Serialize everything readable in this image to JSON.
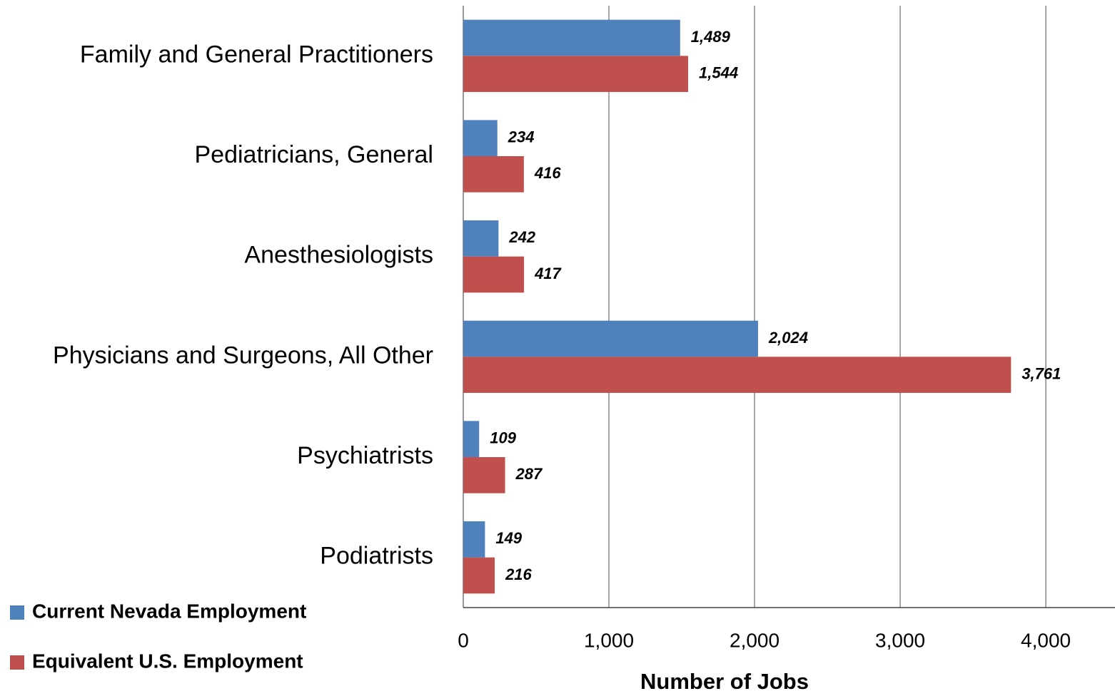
{
  "chart_data": {
    "type": "barh",
    "xlabel": "Number of Jobs",
    "categories": [
      "Family and General Practitioners",
      "Pediatricians, General",
      "Anesthesiologists",
      "Physicians and Surgeons, All Other",
      "Psychiatrists",
      "Podiatrists"
    ],
    "series": [
      {
        "name": "Current Nevada Employment",
        "color": "#4f81bd",
        "values": [
          1489,
          234,
          242,
          2024,
          109,
          149
        ],
        "value_labels": [
          "1,489",
          "234",
          "242",
          "2,024",
          "109",
          "149"
        ]
      },
      {
        "name": "Equivalent U.S. Employment",
        "color": "#c0504d",
        "values": [
          1544,
          416,
          417,
          3761,
          287,
          216
        ],
        "value_labels": [
          "1,544",
          "416",
          "417",
          "3,761",
          "287",
          "216"
        ]
      }
    ],
    "xlim": [
      0,
      4475
    ],
    "xticks": [
      0,
      {
        "value": 1000,
        "label": "1,000"
      },
      {
        "value": 2000,
        "label": "2,000"
      },
      {
        "value": 3000,
        "label": "3,000"
      },
      {
        "value": 4000,
        "label": "4,000"
      }
    ],
    "grid": true,
    "legend": "bottom-left"
  }
}
